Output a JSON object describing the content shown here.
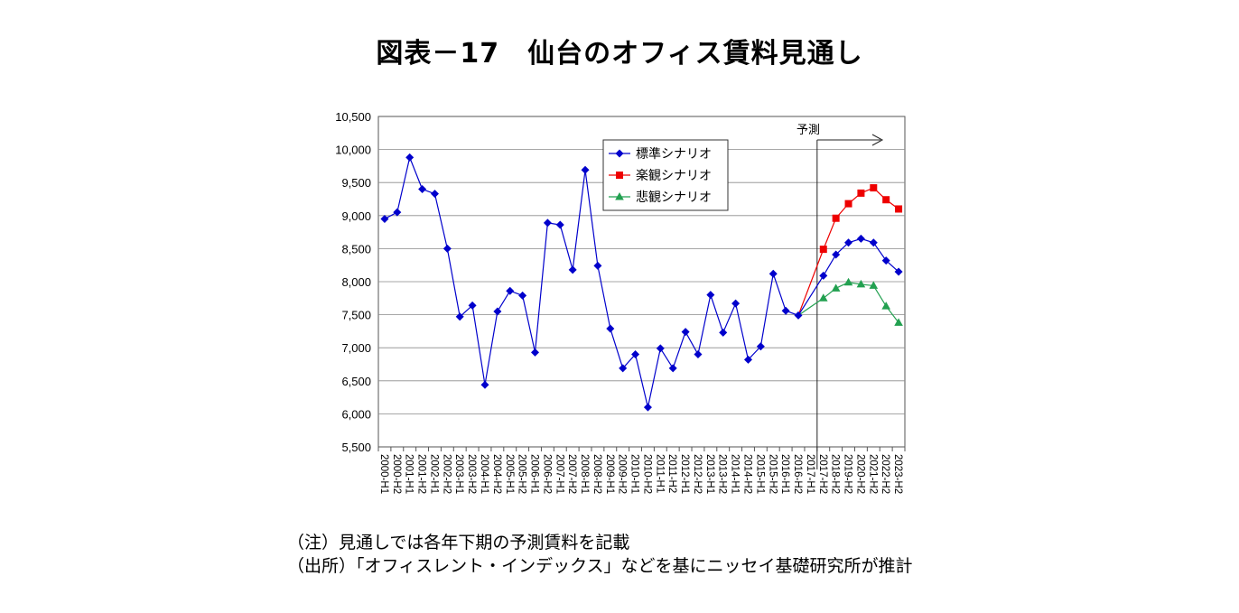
{
  "title": "図表－17　仙台のオフィス賃料見通し",
  "notes": [
    "（注）見通しでは各年下期の予測賃料を記載",
    "（出所）「オフィスレント・インデックス」などを基にニッセイ基礎研究所が推計"
  ],
  "chart_data": {
    "type": "line",
    "title": "",
    "xlabel": "",
    "ylabel": "",
    "ylim": [
      5500,
      10500
    ],
    "y_ticks": [
      5500,
      6000,
      6500,
      7000,
      7500,
      8000,
      8500,
      9000,
      9500,
      10000,
      10500
    ],
    "y_tick_labels": [
      "5,500",
      "6,000",
      "6,500",
      "7,000",
      "7,500",
      "8,000",
      "8,500",
      "9,000",
      "9,500",
      "10,000",
      "10,500"
    ],
    "grid": true,
    "legend_position": "top-center",
    "forecast_label": "予測",
    "forecast_start": "2017-H2",
    "categories": [
      "2000-H1",
      "2000-H2",
      "2001-H1",
      "2001-H2",
      "2002-H1",
      "2002-H2",
      "2003-H1",
      "2003-H2",
      "2004-H1",
      "2004-H2",
      "2005-H1",
      "2005-H2",
      "2006-H1",
      "2006-H2",
      "2007-H1",
      "2007-H2",
      "2008-H1",
      "2008-H2",
      "2009-H1",
      "2009-H2",
      "2010-H1",
      "2010-H2",
      "2011-H1",
      "2011-H2",
      "2012-H1",
      "2012-H2",
      "2013-H1",
      "2013-H2",
      "2014-H1",
      "2014-H2",
      "2015-H1",
      "2015-H2",
      "2016-H1",
      "2016-H2",
      "2017-H1",
      "2017-H2",
      "2018-H2",
      "2019-H2",
      "2020-H2",
      "2021-H2",
      "2022-H2",
      "2023-H2"
    ],
    "series": [
      {
        "name": "標準シナリオ",
        "color": "#0000cc",
        "marker": "diamond",
        "values": [
          8950,
          9050,
          9880,
          9400,
          9330,
          8500,
          7470,
          7640,
          6440,
          7550,
          7860,
          7790,
          6930,
          8890,
          8860,
          8180,
          9690,
          8240,
          7290,
          6690,
          6900,
          6100,
          6990,
          6690,
          7240,
          6900,
          7800,
          7230,
          7670,
          6820,
          7020,
          8120,
          7560,
          7490,
          null,
          8090,
          8410,
          8590,
          8650,
          8590,
          8320,
          8150
        ]
      },
      {
        "name": "楽観シナリオ",
        "color": "#ee0000",
        "marker": "square",
        "values": [
          null,
          null,
          null,
          null,
          null,
          null,
          null,
          null,
          null,
          null,
          null,
          null,
          null,
          null,
          null,
          null,
          null,
          null,
          null,
          null,
          null,
          null,
          null,
          null,
          null,
          null,
          null,
          null,
          null,
          null,
          null,
          null,
          null,
          7490,
          null,
          8490,
          8960,
          9180,
          9340,
          9420,
          9240,
          9100
        ]
      },
      {
        "name": "悲観シナリオ",
        "color": "#22a050",
        "marker": "triangle",
        "values": [
          null,
          null,
          null,
          null,
          null,
          null,
          null,
          null,
          null,
          null,
          null,
          null,
          null,
          null,
          null,
          null,
          null,
          null,
          null,
          null,
          null,
          null,
          null,
          null,
          null,
          null,
          null,
          null,
          null,
          null,
          null,
          null,
          null,
          7490,
          null,
          7750,
          7900,
          7990,
          7960,
          7940,
          7630,
          7380
        ]
      }
    ]
  }
}
